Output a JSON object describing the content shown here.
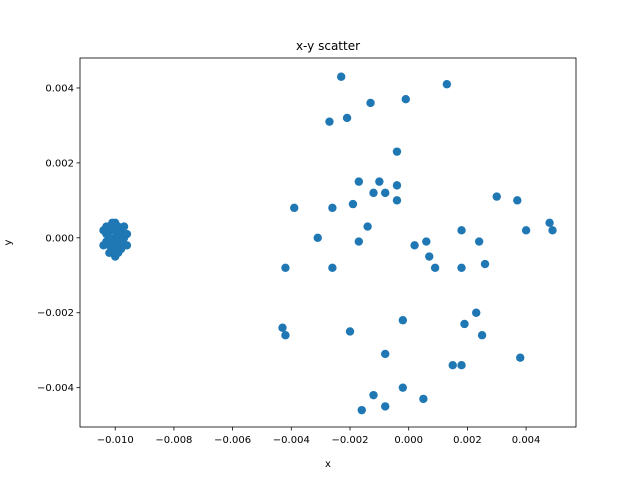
{
  "chart_data": {
    "type": "scatter",
    "title": "x-y scatter",
    "xlabel": "x",
    "ylabel": "y",
    "xlim": [
      -0.0112,
      0.0057
    ],
    "ylim": [
      -0.00505,
      0.0048
    ],
    "xticks": [
      {
        "value": -0.01,
        "label": "−0.010"
      },
      {
        "value": -0.008,
        "label": "−0.008"
      },
      {
        "value": -0.006,
        "label": "−0.006"
      },
      {
        "value": -0.004,
        "label": "−0.004"
      },
      {
        "value": -0.002,
        "label": "−0.002"
      },
      {
        "value": 0.0,
        "label": "0.000"
      },
      {
        "value": 0.002,
        "label": "0.002"
      },
      {
        "value": 0.004,
        "label": "0.004"
      }
    ],
    "yticks": [
      {
        "value": -0.004,
        "label": "−0.004"
      },
      {
        "value": -0.002,
        "label": "−0.002"
      },
      {
        "value": 0.0,
        "label": "0.000"
      },
      {
        "value": 0.002,
        "label": "0.002"
      },
      {
        "value": 0.004,
        "label": "0.004"
      }
    ],
    "grid": false,
    "marker_color": "#1f77b4",
    "series": [
      {
        "points": [
          [
            -0.01,
            0.0
          ],
          [
            -0.0099,
            0.0001
          ],
          [
            -0.0101,
            -0.0001
          ],
          [
            -0.0098,
            0.0002
          ],
          [
            -0.0102,
            0.0003
          ],
          [
            -0.0097,
            -0.0002
          ],
          [
            -0.0103,
            0.0001
          ],
          [
            -0.01,
            0.0004
          ],
          [
            -0.0099,
            -0.0004
          ],
          [
            -0.0101,
            0.0002
          ],
          [
            -0.0096,
            0.0001
          ],
          [
            -0.0104,
            -0.0002
          ],
          [
            -0.0098,
            -0.0003
          ],
          [
            -0.0102,
            -0.0004
          ],
          [
            -0.01,
            -0.0001
          ],
          [
            -0.0097,
            0.0003
          ],
          [
            -0.0099,
            0.0003
          ],
          [
            -0.0101,
            0.0004
          ],
          [
            -0.0103,
            -0.0001
          ],
          [
            -0.0096,
            -0.0002
          ],
          [
            -0.0104,
            0.0002
          ],
          [
            -0.01,
            -0.0005
          ],
          [
            -0.0102,
            0.0
          ],
          [
            -0.0098,
            0.0
          ],
          [
            -0.0099,
            -0.0002
          ],
          [
            -0.0101,
            -0.0003
          ],
          [
            -0.0097,
            0.0
          ],
          [
            -0.0103,
            0.0003
          ],
          [
            -0.01,
            0.0002
          ],
          [
            -0.0098,
            -0.0001
          ],
          [
            -0.0102,
            -0.0002
          ],
          [
            -0.01,
            0.0003
          ],
          [
            -0.0023,
            0.0043
          ],
          [
            0.0013,
            0.0041
          ],
          [
            -0.0013,
            0.0036
          ],
          [
            -0.0001,
            0.0037
          ],
          [
            -0.0021,
            0.0032
          ],
          [
            -0.0027,
            0.0031
          ],
          [
            -0.0004,
            0.0023
          ],
          [
            -0.0017,
            0.0015
          ],
          [
            -0.001,
            0.0015
          ],
          [
            -0.0004,
            0.0014
          ],
          [
            -0.0012,
            0.0012
          ],
          [
            -0.0008,
            0.0012
          ],
          [
            -0.0004,
            0.001
          ],
          [
            0.003,
            0.0011
          ],
          [
            0.0037,
            0.001
          ],
          [
            -0.0039,
            0.0008
          ],
          [
            -0.0026,
            0.0008
          ],
          [
            -0.0019,
            0.0009
          ],
          [
            -0.0014,
            0.0003
          ],
          [
            0.0048,
            0.0004
          ],
          [
            0.0049,
            0.0002
          ],
          [
            0.004,
            0.0002
          ],
          [
            0.0018,
            0.0002
          ],
          [
            -0.0031,
            0.0
          ],
          [
            -0.0017,
            -0.0001
          ],
          [
            0.0006,
            -0.0001
          ],
          [
            0.0024,
            -0.0001
          ],
          [
            0.0002,
            -0.0002
          ],
          [
            0.0007,
            -0.0005
          ],
          [
            -0.0042,
            -0.0008
          ],
          [
            -0.0026,
            -0.0008
          ],
          [
            0.0009,
            -0.0008
          ],
          [
            0.0018,
            -0.0008
          ],
          [
            0.0026,
            -0.0007
          ],
          [
            0.0023,
            -0.002
          ],
          [
            -0.0002,
            -0.0022
          ],
          [
            0.0019,
            -0.0023
          ],
          [
            -0.0043,
            -0.0024
          ],
          [
            -0.0042,
            -0.0026
          ],
          [
            -0.002,
            -0.0025
          ],
          [
            0.0025,
            -0.0026
          ],
          [
            -0.0008,
            -0.0031
          ],
          [
            0.0038,
            -0.0032
          ],
          [
            0.0015,
            -0.0034
          ],
          [
            0.0018,
            -0.0034
          ],
          [
            -0.0002,
            -0.004
          ],
          [
            -0.0012,
            -0.0042
          ],
          [
            0.0005,
            -0.0043
          ],
          [
            -0.0016,
            -0.0046
          ],
          [
            -0.0008,
            -0.0045
          ]
        ]
      }
    ]
  }
}
